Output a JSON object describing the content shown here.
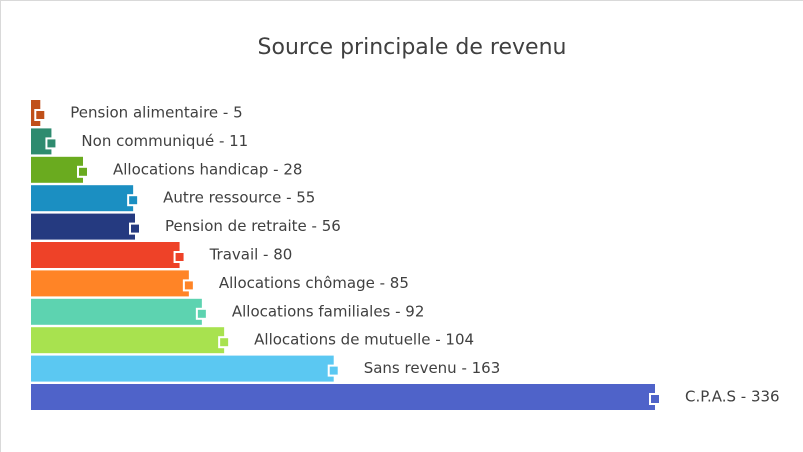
{
  "chart_data": {
    "type": "bar",
    "orientation": "horizontal",
    "title": "Source principale de revenu",
    "values": [
      5,
      11,
      28,
      55,
      56,
      80,
      85,
      92,
      104,
      163,
      336
    ],
    "value_labels": [
      "Pension alimentaire - 5",
      "Non communiqué - 11",
      "Allocations handicap - 28",
      "Autre ressource - 55",
      "Pension de retraite - 56",
      "Travail - 80",
      "Allocations chômage - 85",
      "Allocations familiales - 92",
      "Allocations de mutuelle - 104",
      "Sans revenu - 163",
      "C.P.A.S - 336"
    ],
    "colors": [
      "#c0501a",
      "#2e8b6f",
      "#6aab1f",
      "#1b8fc2",
      "#253a80",
      "#ee4228",
      "#ff8426",
      "#5dd3b0",
      "#a8e24f",
      "#5bc8f2",
      "#4f63c9"
    ]
  }
}
